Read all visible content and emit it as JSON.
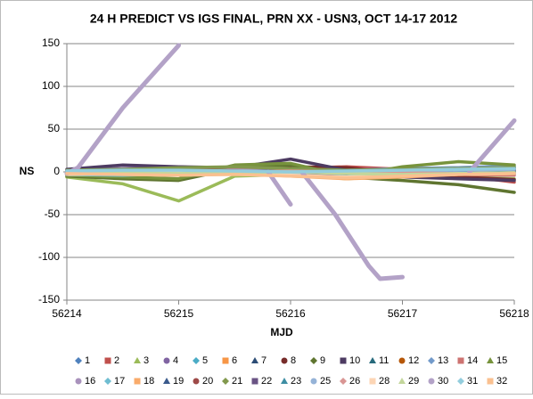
{
  "chart_data": {
    "type": "line",
    "title": "24 H PREDICT VS IGS FINAL, PRN XX - USN3, OCT 14-17 2012",
    "x_label": "MJD",
    "y_label": "NS",
    "xlim": [
      56214,
      56218
    ],
    "xticks": [
      56214,
      56215,
      56216,
      56217,
      56218
    ],
    "ylim": [
      -150,
      150
    ],
    "yticks": [
      -150,
      -100,
      -50,
      0,
      50,
      100,
      150
    ],
    "grid": true,
    "x": [
      56214,
      56214.5,
      56215,
      56215.5,
      56216,
      56216.5,
      56217,
      56217.5,
      56218
    ],
    "series": [
      {
        "name": "1",
        "color": "#4f81bd",
        "values": [
          -2,
          1,
          3,
          2,
          0,
          -1,
          2,
          3,
          4
        ]
      },
      {
        "name": "2",
        "color": "#c0504d",
        "values": [
          -3,
          -5,
          -2,
          1,
          4,
          6,
          3,
          -4,
          -12
        ]
      },
      {
        "name": "3",
        "color": "#9bbb59",
        "values": [
          -6,
          -14,
          -34,
          -5,
          -3,
          -8,
          -4,
          -6,
          -8
        ]
      },
      {
        "name": "4",
        "color": "#8064a2",
        "values": [
          2,
          4,
          6,
          3,
          1,
          -2,
          -3,
          -1,
          0
        ]
      },
      {
        "name": "5",
        "color": "#4bacc6",
        "values": [
          1,
          2,
          3,
          4,
          2,
          1,
          3,
          5,
          6
        ]
      },
      {
        "name": "6",
        "color": "#f79646",
        "values": [
          -1,
          0,
          2,
          1,
          -2,
          -3,
          -1,
          1,
          2
        ]
      },
      {
        "name": "7",
        "color": "#2c4d75",
        "values": [
          0,
          2,
          4,
          3,
          1,
          0,
          2,
          3,
          5
        ]
      },
      {
        "name": "8",
        "color": "#772c2a",
        "values": [
          -2,
          -4,
          -3,
          2,
          6,
          5,
          -2,
          -6,
          -9
        ]
      },
      {
        "name": "9",
        "color": "#5f7530",
        "values": [
          -5,
          -8,
          -10,
          4,
          8,
          -6,
          -10,
          -15,
          -24
        ]
      },
      {
        "name": "10",
        "color": "#4d3b62",
        "values": [
          3,
          8,
          6,
          5,
          15,
          2,
          -6,
          -8,
          -10
        ]
      },
      {
        "name": "11",
        "color": "#276a7c",
        "values": [
          0,
          1,
          2,
          1,
          0,
          -1,
          1,
          2,
          3
        ]
      },
      {
        "name": "12",
        "color": "#b65708",
        "values": [
          -1,
          -2,
          0,
          2,
          3,
          1,
          -1,
          0,
          1
        ]
      },
      {
        "name": "13",
        "color": "#729aca",
        "values": [
          1,
          3,
          2,
          0,
          -1,
          2,
          4,
          5,
          7
        ]
      },
      {
        "name": "14",
        "color": "#cd7371",
        "values": [
          -2,
          -1,
          1,
          3,
          2,
          0,
          -2,
          -3,
          -4
        ]
      },
      {
        "name": "15",
        "color": "#77933c",
        "values": [
          -4,
          -6,
          -8,
          8,
          10,
          -5,
          6,
          12,
          8
        ]
      },
      {
        "name": "16",
        "color": "#a992bc",
        "values": [
          0,
          -1,
          1,
          2,
          1,
          0,
          -1,
          1,
          2
        ]
      },
      {
        "name": "17",
        "color": "#6fbdd1",
        "values": [
          -3,
          -4,
          -2,
          -1,
          -3,
          -5,
          -2,
          -1,
          0
        ]
      },
      {
        "name": "18",
        "color": "#f9ab6b",
        "values": [
          -2,
          -3,
          -4,
          -2,
          -5,
          -8,
          -6,
          -3,
          -2
        ]
      },
      {
        "name": "19",
        "color": "#3a5a8c",
        "values": [
          1,
          0,
          -1,
          0,
          2,
          1,
          0,
          -1,
          -2
        ]
      },
      {
        "name": "20",
        "color": "#9e4a48",
        "values": [
          0,
          2,
          3,
          1,
          -1,
          -2,
          1,
          2,
          0
        ]
      },
      {
        "name": "21",
        "color": "#82994d",
        "values": [
          2,
          3,
          5,
          6,
          4,
          2,
          3,
          4,
          5
        ]
      },
      {
        "name": "22",
        "color": "#6a5384",
        "values": [
          -1,
          0,
          1,
          0,
          -1,
          -2,
          0,
          1,
          2
        ]
      },
      {
        "name": "23",
        "color": "#3e8ea3",
        "values": [
          0,
          1,
          0,
          -1,
          0,
          1,
          2,
          1,
          0
        ]
      },
      {
        "name": "25",
        "color": "#95b3d7",
        "values": [
          1,
          2,
          1,
          0,
          -1,
          0,
          1,
          2,
          3
        ]
      },
      {
        "name": "26",
        "color": "#d99694",
        "values": [
          -1,
          -2,
          -1,
          0,
          1,
          0,
          -1,
          -2,
          -1
        ]
      },
      {
        "name": "28",
        "color": "#fcd5b5",
        "values": [
          -3,
          -2,
          -1,
          -2,
          -4,
          -6,
          -4,
          -2,
          -1
        ]
      },
      {
        "name": "29",
        "color": "#c3d69b",
        "values": [
          0,
          -1,
          -2,
          -1,
          0,
          -2,
          -3,
          -2,
          -1
        ]
      },
      {
        "name": "30",
        "color": "#b3a2c7",
        "x": [
          56214,
          56214.1,
          56214.5,
          56215,
          56215.4,
          56215.8,
          56216,
          56216.05,
          56216.1,
          56216.4,
          56216.7,
          56216.8,
          56217,
          56217.3,
          56217.6,
          56218
        ],
        "values": [
          -2,
          5,
          75,
          148,
          null,
          0,
          -38,
          null,
          0,
          -50,
          -110,
          -125,
          -123,
          null,
          0,
          60
        ]
      },
      {
        "name": "31",
        "color": "#93cddd",
        "values": [
          1,
          2,
          2,
          1,
          0,
          1,
          2,
          3,
          4
        ]
      },
      {
        "name": "32",
        "color": "#fac090",
        "values": [
          -2,
          -3,
          -4,
          -3,
          -5,
          -7,
          -5,
          -3,
          -2
        ]
      }
    ]
  }
}
